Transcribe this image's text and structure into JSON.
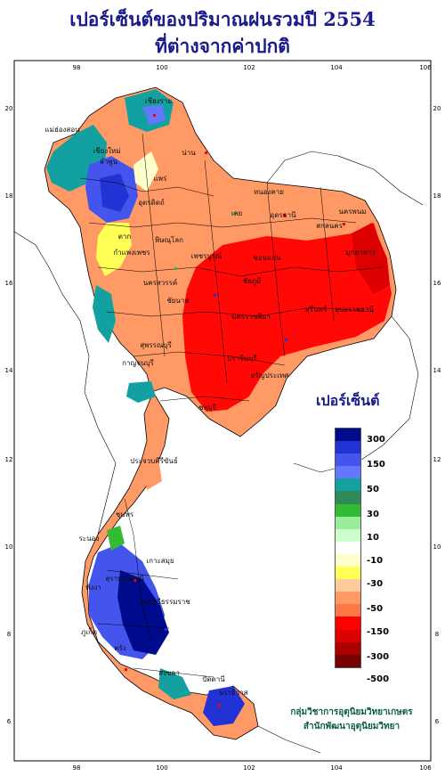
{
  "title_line1": "เปอร์เซ็นต์ของปริมาณฝนรวมปี  2554",
  "title_line2": "ที่ต่างจากค่าปกติ",
  "legend_title": "เปอร์เซ็นต์",
  "legend_colors": [
    "#000a8c",
    "#2233d6",
    "#4455ee",
    "#6677ff",
    "#12a0a0",
    "#2e8b57",
    "#33bb33",
    "#99ee99",
    "#ccffcc",
    "#ffffff",
    "#ffffcc",
    "#ffff55",
    "#ffcc99",
    "#ff9966",
    "#ff7744",
    "#ff0000",
    "#dd0000",
    "#aa0000",
    "#770000"
  ],
  "legend_labels": [
    "300",
    "150",
    "50",
    "30",
    "10",
    "-10",
    "-30",
    "-50",
    "-150",
    "-300",
    "-500"
  ],
  "x_ticks": [
    "98",
    "100",
    "102",
    "104",
    "106"
  ],
  "y_ticks": [
    "20",
    "18",
    "16",
    "14",
    "12",
    "10",
    "8",
    "6"
  ],
  "provinces": [
    "เชียงราย",
    "แม่ฮ่องสอน",
    "เชียงใหม่",
    "ลำพูน",
    "น่าน",
    "แพร่",
    "อุตรดิตถ์",
    "ตาก",
    "พิษณุโลก",
    "กำแพงเพชร",
    "หนองคาย",
    "เลย",
    "อุดรธานี",
    "นครพนม",
    "สกลนคร",
    "มุกดาหาร",
    "ขอนแก่น",
    "เพชรบูรณ์",
    "นครสวรรค์",
    "ชัยภูมิ",
    "อุบลราชธานี",
    "นครราชสีมา",
    "สุรินทร์",
    "ชัยนาท",
    "สุพรรณบุรี",
    "กาญจนบุรี",
    "ปราจีนบุรี",
    "อรัญประเทศ",
    "ชลบุรี",
    "ประจวบคีรีขันธ์",
    "ชุมพร",
    "ระนอง",
    "เกาะสมุย",
    "สุราษฎร์ธานี",
    "พังงา",
    "ภูเก็ต",
    "นครศรีธรรมราช",
    "ตรัง",
    "สงขลา",
    "ปัตตานี",
    "นราธิวาส"
  ],
  "credit_line1": "กลุ่มวิชาการอุตุนิยมวิทยาเกษตร",
  "credit_line2": "สำนักพัฒนาอุตุนิยมวิทยา"
}
